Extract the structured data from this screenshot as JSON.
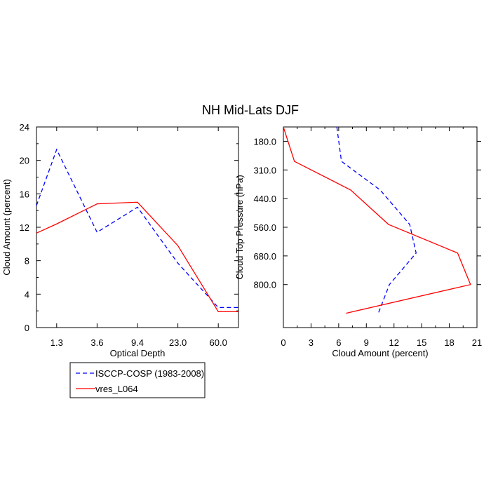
{
  "title": "NH Mid-Lats DJF",
  "legend": {
    "placement": "bottom-left",
    "entries": [
      {
        "label": "ISCCP-COSP (1983-2008)",
        "color": "#0000ff",
        "style": "dashed"
      },
      {
        "label": "vres_L064",
        "color": "#ff0000",
        "style": "solid"
      }
    ]
  },
  "chart_data": [
    {
      "type": "line",
      "xlabel": "Optical Depth",
      "ylabel": "Cloud Amount (percent)",
      "x_tick_labels": [
        "1.3",
        "3.6",
        "9.4",
        "23.0",
        "60.0"
      ],
      "y_ticks": [
        0,
        4,
        8,
        12,
        16,
        20,
        24
      ],
      "ylim": [
        0,
        24
      ],
      "x_range_bins": [
        0,
        5
      ],
      "series": [
        {
          "name": "ISCCP-COSP (1983-2008)",
          "color": "#0000ff",
          "style": "dashed",
          "x": [
            0,
            0.5,
            1.5,
            2.5,
            3.5,
            4.5,
            5
          ],
          "y": [
            14.6,
            21.3,
            11.4,
            14.4,
            7.7,
            2.4,
            2.4
          ]
        },
        {
          "name": "vres_L064",
          "color": "#ff0000",
          "style": "solid",
          "x": [
            0,
            0.5,
            1.5,
            2.5,
            3.5,
            4.5,
            5
          ],
          "y": [
            11.3,
            12.4,
            14.8,
            15.0,
            9.8,
            1.9,
            1.9
          ]
        }
      ]
    },
    {
      "type": "line",
      "xlabel": "Cloud Amount (percent)",
      "ylabel": "Cloud Top Pressure (hPa)",
      "x_ticks": [
        0,
        3,
        6,
        9,
        12,
        15,
        18,
        21
      ],
      "xlim": [
        0,
        21
      ],
      "y_tick_labels": [
        "180.0",
        "310.0",
        "440.0",
        "560.0",
        "680.0",
        "800.0"
      ],
      "y_range_levels": [
        0,
        7
      ],
      "y_reversed": true,
      "series": [
        {
          "name": "ISCCP-COSP (1983-2008)",
          "color": "#0000ff",
          "style": "dashed",
          "y": [
            0,
            1.2,
            2.2,
            3.4,
            4.4,
            5.5,
            6.5
          ],
          "x": [
            5.8,
            6.3,
            10.5,
            13.7,
            14.4,
            11.5,
            10.3
          ]
        },
        {
          "name": "vres_L064",
          "color": "#ff0000",
          "style": "solid",
          "y": [
            0,
            1.2,
            2.2,
            3.4,
            4.4,
            5.5,
            6.5
          ],
          "x": [
            0,
            1.2,
            7.3,
            11.4,
            18.9,
            20.3,
            6.8
          ]
        }
      ]
    }
  ]
}
